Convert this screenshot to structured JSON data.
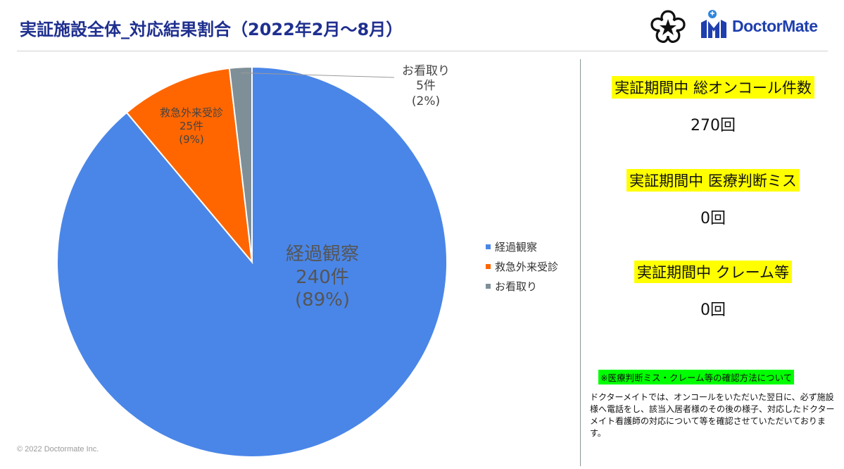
{
  "page": {
    "title": "実証施設全体_対応結果割合（2022年2月～8月）",
    "logo_text": "DoctorMate",
    "copyright": "© 2022 Doctormate Inc."
  },
  "colors": {
    "title": "#1f2f8f",
    "brand": "#1f3fae",
    "highlight_yellow": "#ffff00",
    "highlight_green": "#00ff00"
  },
  "chart_data": {
    "type": "pie",
    "categories": [
      "経過観察",
      "救急外来受診",
      "お看取り"
    ],
    "values": [
      240,
      25,
      5
    ],
    "percent_labels": [
      "(89%)",
      "(9%)",
      "(2%)"
    ],
    "count_labels": [
      "240件",
      "25件",
      "5件"
    ],
    "colors": [
      "#4a86e8",
      "#ff6600",
      "#7f8f98"
    ],
    "legend_position": "right",
    "start_angle_deg": 0,
    "direction": "counterclockwise-from-top"
  },
  "stats": [
    {
      "heading": "実証期間中 総オンコール件数",
      "value": "270回"
    },
    {
      "heading": "実証期間中 医療判断ミス",
      "value": "0回"
    },
    {
      "heading": "実証期間中 クレーム等",
      "value": "0回"
    }
  ],
  "note": {
    "heading": "※医療判断ミス・クレーム等の確認方法について",
    "body": "ドクターメイトでは、オンコールをいただいた翌日に、必ず施設様へ電話をし、該当入居者様のその後の様子、対応したドクターメイト看護師の対応について等を確認させていただいております。"
  }
}
